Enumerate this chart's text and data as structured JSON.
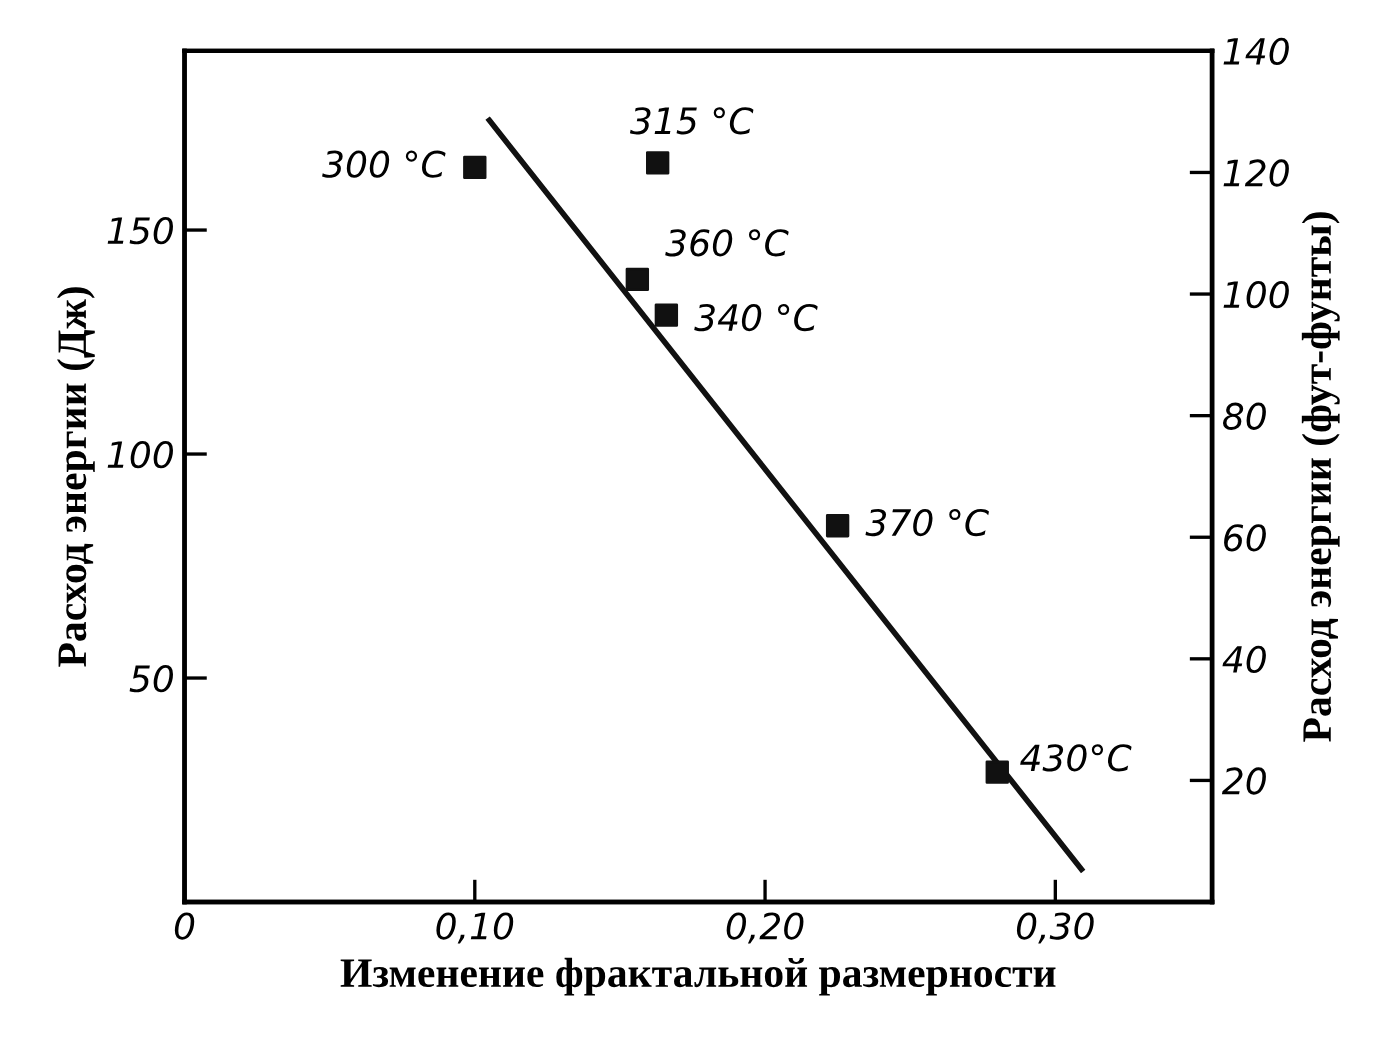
{
  "chart_data": {
    "type": "scatter",
    "xlabel": "Изменение фрактальной размерности",
    "ylabel": "Расход энергии (Дж)",
    "y2label": "Расход энергии (фут-фунты)",
    "series": [
      {
        "color": "#111111",
        "marker": "square",
        "x": [
          0.1,
          0.163,
          0.156,
          0.166,
          0.225,
          0.28
        ],
        "values": [
          164,
          165,
          139,
          131,
          84,
          29
        ]
      },
      {
        "type": "line",
        "color": "#111111",
        "marker": "none",
        "line_style": "solid",
        "x": [
          0.105,
          0.309
        ],
        "values": [
          174.5,
          7.3
        ]
      }
    ],
    "annotations": [
      {
        "text": "300 °C",
        "x": 0.1,
        "y": 164
      },
      {
        "text": "315 °C",
        "x": 0.163,
        "y": 165
      },
      {
        "text": "360 °C",
        "x": 0.156,
        "y": 139
      },
      {
        "text": "340 °C",
        "x": 0.166,
        "y": 131
      },
      {
        "text": "370 °C",
        "x": 0.225,
        "y": 84
      },
      {
        "text": "430°C",
        "x": 0.28,
        "y": 29
      }
    ],
    "xlim": [
      0,
      0.354
    ],
    "xticks": [
      {
        "value": 0,
        "label": "0"
      },
      {
        "value": 0.1,
        "label": "0,10"
      },
      {
        "value": 0.2,
        "label": "0,20"
      },
      {
        "value": 0.3,
        "label": "0,30"
      }
    ],
    "ylim": [
      0,
      190
    ],
    "yticks": [
      50,
      100,
      150
    ],
    "y2lim": [
      0,
      140
    ],
    "y2ticks": [
      20,
      40,
      60,
      80,
      100,
      120,
      140
    ],
    "grid": false,
    "legend": false
  }
}
